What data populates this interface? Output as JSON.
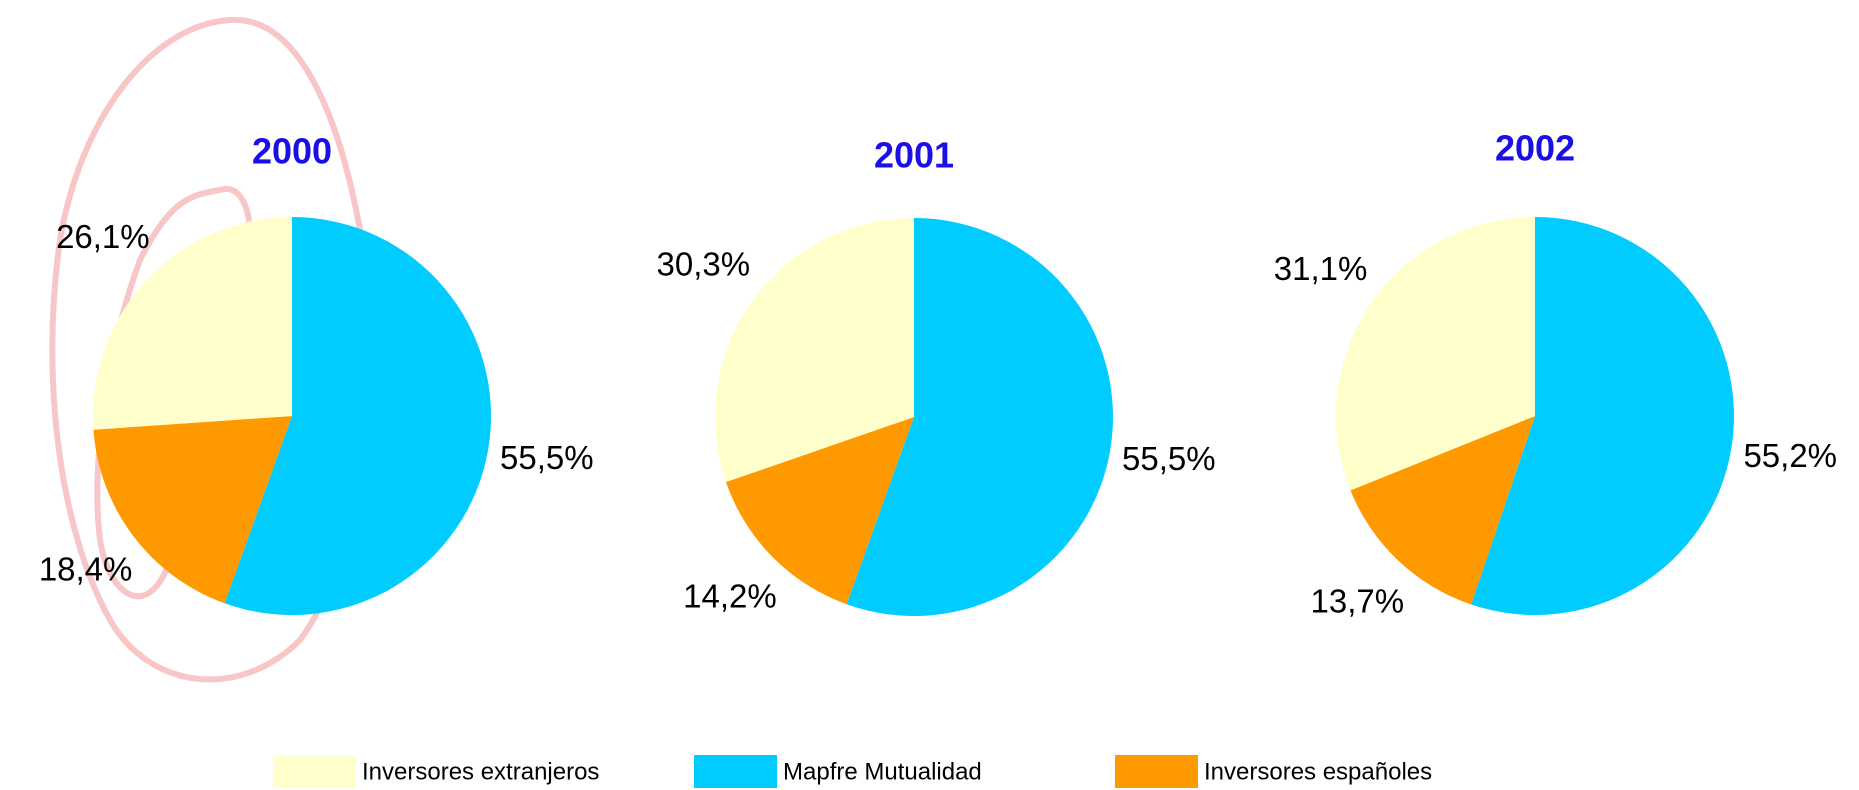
{
  "legend": {
    "labels": [
      "Inversores extranjeros",
      "Mapfre Mutualidad",
      "Inversores españoles"
    ],
    "colors": [
      "#ffffcc",
      "#00ccff",
      "#ff9900"
    ]
  },
  "chart_data": [
    {
      "type": "pie",
      "title": "2000",
      "values": [
        26.1,
        55.5,
        18.4
      ],
      "value_labels": [
        "26,1%",
        "55,5%",
        "18,4%"
      ]
    },
    {
      "type": "pie",
      "title": "2001",
      "values": [
        30.3,
        55.5,
        14.2
      ],
      "value_labels": [
        "30,3%",
        "55,5%",
        "14,2%"
      ]
    },
    {
      "type": "pie",
      "title": "2002",
      "values": [
        31.1,
        55.2,
        13.7
      ],
      "value_labels": [
        "31,1%",
        "55,2%",
        "13,7%"
      ]
    }
  ]
}
